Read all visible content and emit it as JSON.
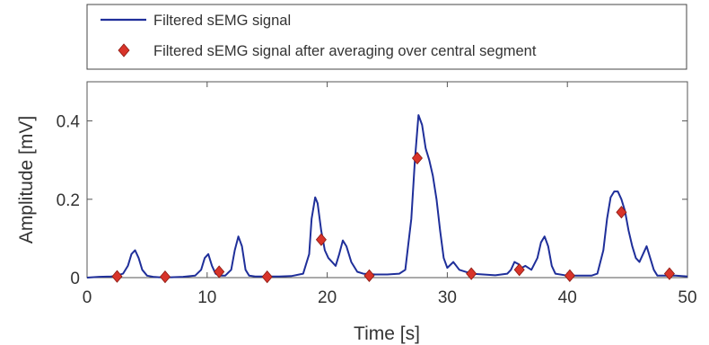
{
  "chart_data": {
    "type": "line",
    "xlabel": "Time [s]",
    "ylabel": "Amplitude [mV]",
    "xlim": [
      0,
      50
    ],
    "ylim": [
      0,
      0.5
    ],
    "xticks": [
      0,
      10,
      20,
      30,
      40,
      50
    ],
    "xtick_labels": [
      "0",
      "10",
      "20",
      "30",
      "40",
      "50"
    ],
    "yticks": [
      0,
      0.2,
      0.4
    ],
    "ytick_labels": [
      "0",
      "0.2",
      "0.4"
    ],
    "grid": false,
    "legend_position": "top",
    "series": [
      {
        "name": "Filtered sEMG signal",
        "style": "line",
        "color": "#1f2f9a",
        "x": [
          0,
          1,
          2,
          2.5,
          3,
          3.4,
          3.7,
          4,
          4.3,
          4.6,
          5,
          5.5,
          6,
          7,
          8,
          9,
          9.5,
          9.8,
          10.1,
          10.4,
          10.7,
          11,
          11.5,
          12,
          12.3,
          12.6,
          12.9,
          13.2,
          13.5,
          14,
          15,
          16,
          17,
          18,
          18.5,
          18.7,
          19,
          19.2,
          19.5,
          19.8,
          20.1,
          20.4,
          20.7,
          21,
          21.3,
          21.6,
          22,
          22.5,
          23,
          24,
          25,
          26,
          26.5,
          27,
          27.3,
          27.6,
          27.9,
          28.2,
          28.5,
          28.8,
          29.1,
          29.4,
          29.7,
          30,
          30.5,
          31,
          32,
          33,
          34,
          35,
          35.3,
          35.6,
          35.9,
          36.2,
          36.5,
          37,
          37.5,
          37.8,
          38.1,
          38.4,
          38.7,
          39,
          40,
          41,
          42,
          42.5,
          43,
          43.3,
          43.6,
          43.9,
          44.2,
          44.5,
          44.8,
          45.1,
          45.4,
          45.7,
          46,
          46.3,
          46.6,
          46.9,
          47.2,
          47.5,
          48,
          48.5,
          49,
          50
        ],
        "y": [
          0,
          0.002,
          0.003,
          0.005,
          0.01,
          0.03,
          0.06,
          0.07,
          0.05,
          0.02,
          0.005,
          0.002,
          0.001,
          0.001,
          0.002,
          0.005,
          0.02,
          0.05,
          0.06,
          0.03,
          0.01,
          0.005,
          0.005,
          0.02,
          0.07,
          0.105,
          0.08,
          0.02,
          0.005,
          0.003,
          0.003,
          0.003,
          0.004,
          0.01,
          0.06,
          0.15,
          0.205,
          0.19,
          0.12,
          0.07,
          0.05,
          0.04,
          0.03,
          0.06,
          0.095,
          0.08,
          0.04,
          0.015,
          0.01,
          0.008,
          0.008,
          0.01,
          0.02,
          0.15,
          0.3,
          0.415,
          0.39,
          0.33,
          0.3,
          0.26,
          0.2,
          0.12,
          0.05,
          0.025,
          0.04,
          0.02,
          0.01,
          0.008,
          0.006,
          0.01,
          0.02,
          0.04,
          0.035,
          0.025,
          0.03,
          0.02,
          0.05,
          0.09,
          0.105,
          0.08,
          0.03,
          0.01,
          0.005,
          0.005,
          0.005,
          0.01,
          0.07,
          0.15,
          0.205,
          0.22,
          0.22,
          0.2,
          0.17,
          0.12,
          0.08,
          0.05,
          0.04,
          0.06,
          0.08,
          0.05,
          0.02,
          0.005,
          0.005,
          0.005,
          0.005,
          0.003
        ]
      },
      {
        "name": "Filtered sEMG signal after averaging over central segment",
        "style": "markers",
        "marker": "diamond",
        "color": "#d8342a",
        "x": [
          2.5,
          6.5,
          11,
          15,
          19.5,
          23.5,
          27.5,
          32,
          36,
          40.2,
          44.5,
          48.5
        ],
        "y": [
          0.003,
          0.002,
          0.015,
          0.002,
          0.097,
          0.005,
          0.305,
          0.01,
          0.02,
          0.005,
          0.167,
          0.01
        ]
      }
    ]
  }
}
